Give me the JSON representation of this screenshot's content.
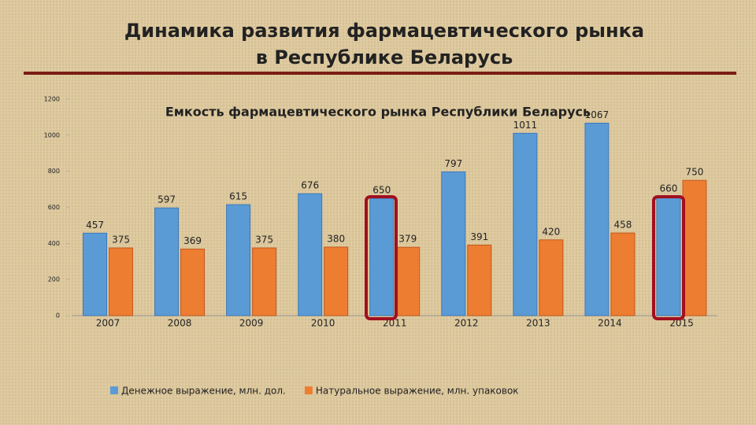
{
  "header": {
    "lines": [
      "Динамика развития фармацевтического рынка",
      "в Республике Беларусь"
    ]
  },
  "chart_data": {
    "type": "bar",
    "title": "Емкость фармацевтического рынка Республики Беларусь",
    "categories": [
      "2007",
      "2008",
      "2009",
      "2010",
      "2011",
      "2012",
      "2013",
      "2014",
      "2015"
    ],
    "series": [
      {
        "name": "Денежное выражение, млн. дол.",
        "color": "#5b9bd5",
        "values": [
          457,
          597,
          615,
          676,
          650,
          797,
          1011,
          1067,
          660
        ]
      },
      {
        "name": "Натуральное выражение, млн. упаковок",
        "color": "#ed7d31",
        "values": [
          375,
          369,
          375,
          380,
          379,
          391,
          420,
          458,
          750
        ]
      }
    ],
    "ylim": [
      0,
      1200
    ],
    "yticks": [
      0,
      200,
      400,
      600,
      800,
      1000,
      1200
    ],
    "grid": false,
    "legend": "bottom"
  }
}
